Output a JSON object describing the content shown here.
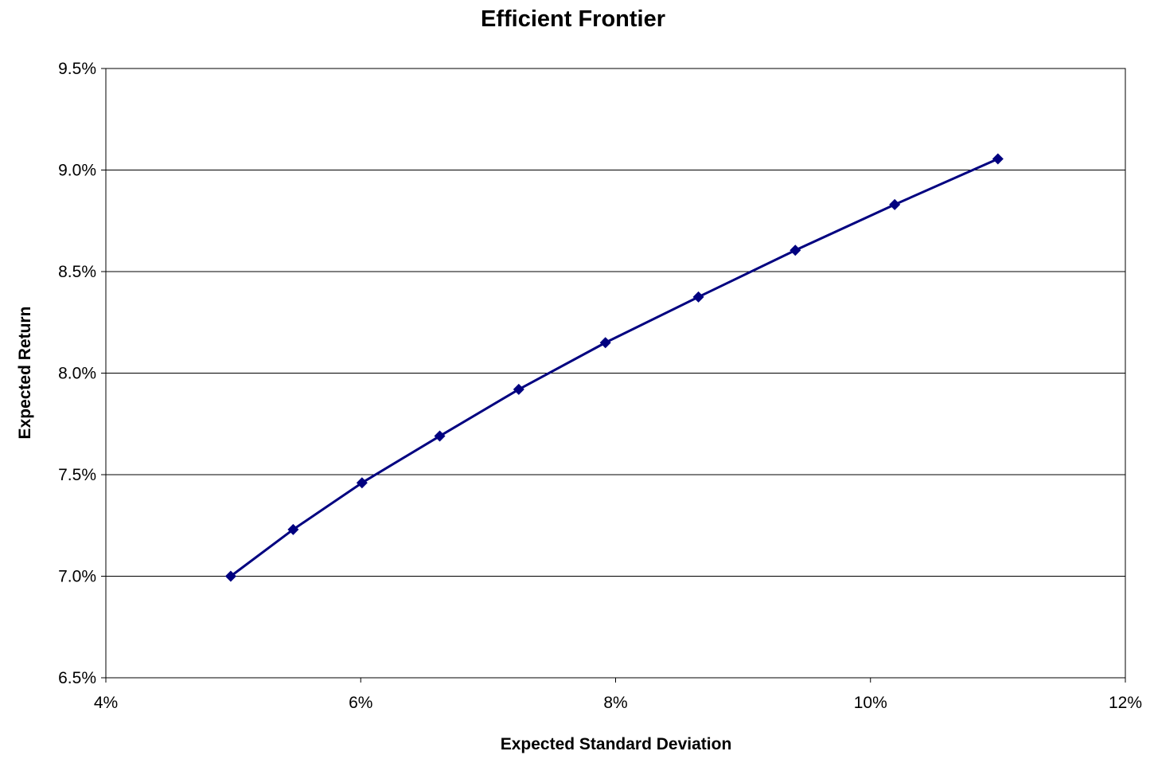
{
  "chart_data": {
    "type": "line",
    "title": "Efficient Frontier",
    "xlabel": "Expected Standard Deviation",
    "ylabel": "Expected Return",
    "xlim": [
      4,
      12
    ],
    "ylim": [
      6.5,
      9.5
    ],
    "x_ticks": [
      4,
      6,
      8,
      10,
      12
    ],
    "x_tick_labels": [
      "4%",
      "6%",
      "8%",
      "10%",
      "12%"
    ],
    "y_ticks": [
      6.5,
      7.0,
      7.5,
      8.0,
      8.5,
      9.0,
      9.5
    ],
    "y_tick_labels": [
      "6.5%",
      "7.0%",
      "7.5%",
      "8.0%",
      "8.5%",
      "9.0%",
      "9.5%"
    ],
    "grid": "horizontal major gridlines",
    "legend": "none",
    "marker": "diamond",
    "series_color": "#000080",
    "series": [
      {
        "x": [
          4.98,
          5.47,
          6.01,
          6.62,
          7.24,
          7.92,
          8.65,
          9.41,
          10.19,
          11.0
        ],
        "y": [
          7.0,
          7.23,
          7.46,
          7.69,
          7.92,
          8.15,
          8.375,
          8.605,
          8.83,
          9.055
        ]
      }
    ]
  }
}
